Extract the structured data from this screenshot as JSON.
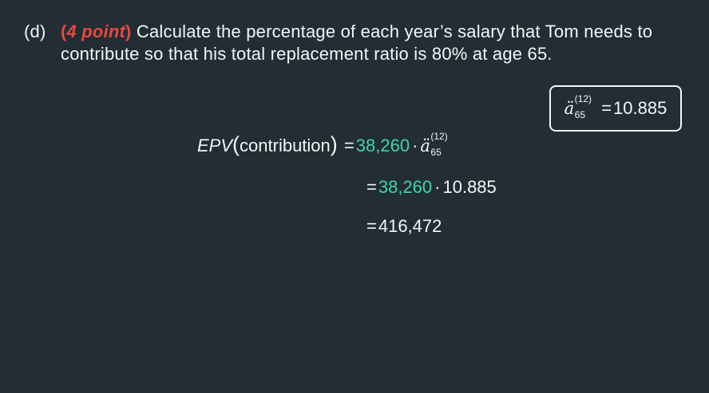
{
  "question": {
    "label": "(d)",
    "points_open": "(",
    "points_text": "4 point",
    "points_close": ")",
    "text": "Calculate the percentage of each year’s salary that Tom needs to contribute so that his total replacement ratio is 80% at age 65."
  },
  "given": {
    "symbol": "ä",
    "superscript": "(12)",
    "subscript": "65",
    "equals": "=",
    "value": "10.885"
  },
  "equations": {
    "line1": {
      "lhs_ital": "EPV",
      "paren_open": "(",
      "lhs_word": "contribution",
      "paren_close": ")",
      "equals": "=",
      "coefficient": "38,260",
      "dot": "·",
      "symbol": "ä",
      "superscript": "(12)",
      "subscript": "65"
    },
    "line2": {
      "equals": "=",
      "coefficient": "38,260",
      "dot": "·",
      "value": "10.885"
    },
    "line3": {
      "equals": "=",
      "result": "416,472"
    }
  },
  "colors": {
    "background": "#222d34",
    "text": "#f4f6f7",
    "points_accent": "#e8483d",
    "highlight": "#3fd6a9"
  }
}
